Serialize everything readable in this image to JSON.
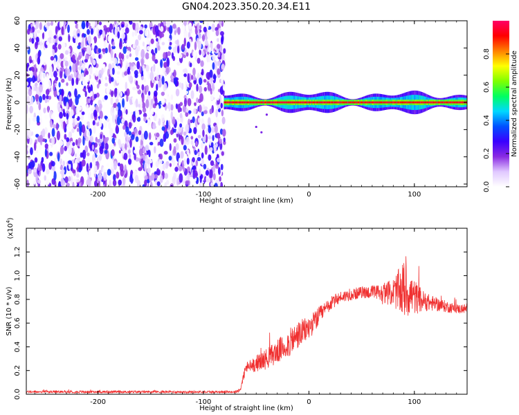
{
  "chart_data": [
    {
      "type": "heatmap",
      "title": "GN04.2023.350.20.34.E11",
      "xlabel": "Height of straight line (km)",
      "ylabel": "Frequency (Hz)",
      "xlim": [
        -268,
        150
      ],
      "ylim": [
        -62,
        60
      ],
      "xticks": [
        -200,
        -100,
        0,
        100
      ],
      "yticks": [
        -60,
        -40,
        -20,
        0,
        20,
        40,
        60
      ],
      "noise_region_x": [
        -268,
        -80
      ],
      "signal_band_x": [
        -80,
        150
      ],
      "signal_band_halfwidth_hz": 4,
      "colorbar": {
        "label": "Normalized spectral amplitude",
        "ticks": [
          0.0,
          0.2,
          0.4,
          0.6,
          0.8
        ],
        "range": [
          0,
          1
        ],
        "colors": [
          "#ffffff",
          "#e0c8ff",
          "#8a2be2",
          "#3a00ff",
          "#0050ff",
          "#00d8ff",
          "#00ff60",
          "#80ff00",
          "#ffff00",
          "#ff8000",
          "#ff0000",
          "#ff0066"
        ]
      }
    },
    {
      "type": "line",
      "xlabel": "Height of straight line (km)",
      "ylabel": "SNR (10 * v/v)",
      "scale_label": "(x10",
      "scale_exp": "4",
      "scale_close": ")",
      "xlim": [
        -268,
        150
      ],
      "ylim": [
        0,
        1.4
      ],
      "xticks": [
        -200,
        -100,
        0,
        100
      ],
      "yticks": [
        0.0,
        0.2,
        0.4,
        0.6,
        0.8,
        1.0,
        1.2
      ],
      "color": "#f03030",
      "series": {
        "name": "SNR",
        "x": [
          -268,
          -250,
          -200,
          -150,
          -100,
          -70,
          -65,
          -60,
          -50,
          -40,
          -30,
          -20,
          -10,
          0,
          10,
          20,
          30,
          40,
          50,
          60,
          70,
          80,
          90,
          100,
          110,
          120,
          130,
          140,
          150
        ],
        "y": [
          0.02,
          0.02,
          0.02,
          0.02,
          0.02,
          0.02,
          0.04,
          0.22,
          0.26,
          0.3,
          0.36,
          0.42,
          0.5,
          0.56,
          0.66,
          0.76,
          0.82,
          0.84,
          0.86,
          0.86,
          0.85,
          0.86,
          0.88,
          0.82,
          0.78,
          0.76,
          0.74,
          0.72,
          0.72
        ],
        "noise": [
          0.01,
          0.01,
          0.01,
          0.01,
          0.01,
          0.01,
          0.02,
          0.05,
          0.07,
          0.09,
          0.1,
          0.12,
          0.12,
          0.1,
          0.08,
          0.06,
          0.05,
          0.05,
          0.05,
          0.06,
          0.08,
          0.12,
          0.25,
          0.15,
          0.08,
          0.06,
          0.05,
          0.04,
          0.04
        ]
      }
    }
  ]
}
